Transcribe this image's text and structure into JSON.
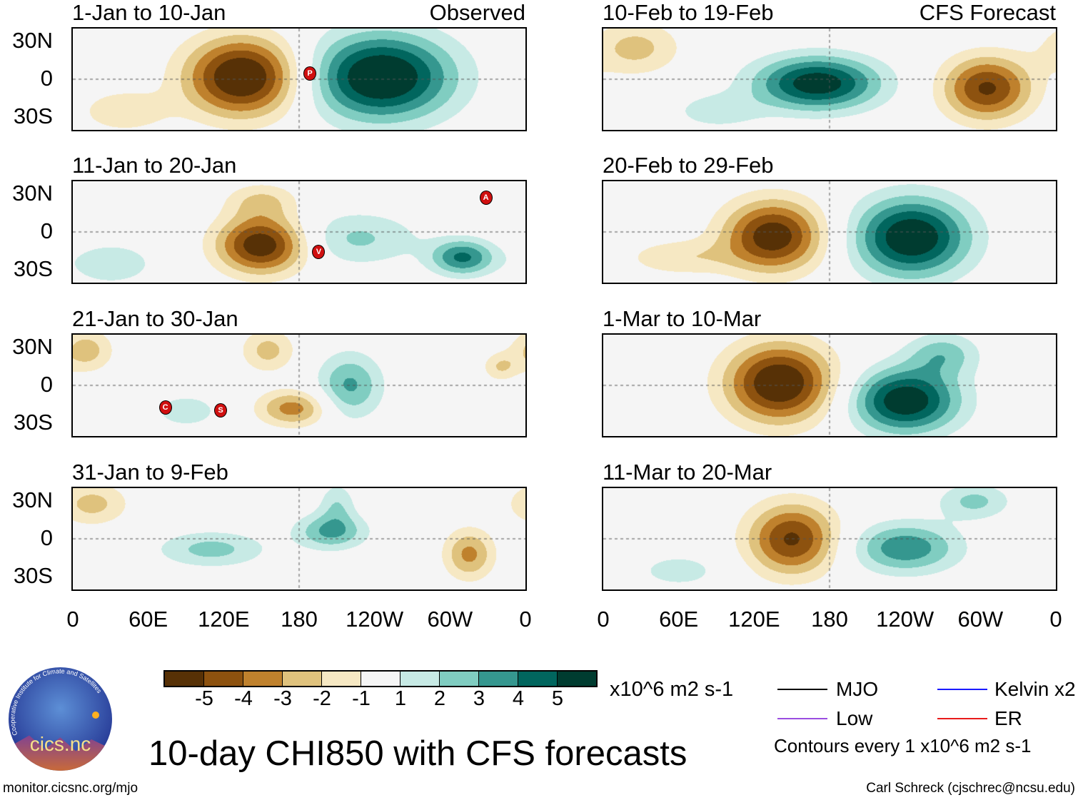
{
  "panels": [
    {
      "title": "1-Jan to 10-Jan",
      "tag": "Observed",
      "markers": [
        {
          "letter": "P",
          "lon": 188,
          "lat": 5
        }
      ],
      "blobs": [
        {
          "lon": 135,
          "lat": 2,
          "amp": -6.5,
          "slon": 32,
          "slat": 22
        },
        {
          "lon": 245,
          "lat": 2,
          "amp": 6.5,
          "slon": 40,
          "slat": 24
        },
        {
          "lon": 40,
          "lat": -25,
          "amp": -1.8,
          "slon": 25,
          "slat": 12
        }
      ]
    },
    {
      "title": "11-Jan to 20-Jan",
      "tag": "",
      "markers": [
        {
          "letter": "V",
          "lon": 195,
          "lat": -15
        },
        {
          "letter": "A",
          "lon": 328,
          "lat": 28
        }
      ],
      "blobs": [
        {
          "lon": 150,
          "lat": -10,
          "amp": -6,
          "slon": 25,
          "slat": 16
        },
        {
          "lon": 310,
          "lat": -20,
          "amp": 4.2,
          "slon": 18,
          "slat": 10
        },
        {
          "lon": 225,
          "lat": -5,
          "amp": 2.2,
          "slon": 35,
          "slat": 15
        },
        {
          "lon": 30,
          "lat": -25,
          "amp": 1.8,
          "slon": 25,
          "slat": 12
        },
        {
          "lon": 150,
          "lat": 25,
          "amp": -2,
          "slon": 20,
          "slat": 10
        }
      ]
    },
    {
      "title": "21-Jan to 30-Jan",
      "tag": "",
      "markers": [
        {
          "letter": "C",
          "lon": 73,
          "lat": -17
        },
        {
          "letter": "S",
          "lon": 117,
          "lat": -19
        }
      ],
      "blobs": [
        {
          "lon": 175,
          "lat": -18,
          "amp": -3.5,
          "slon": 20,
          "slat": 10
        },
        {
          "lon": 220,
          "lat": 0,
          "amp": 3.2,
          "slon": 18,
          "slat": 18
        },
        {
          "lon": 10,
          "lat": 28,
          "amp": -2.6,
          "slon": 15,
          "slat": 12
        },
        {
          "lon": 155,
          "lat": 28,
          "amp": -2.4,
          "slon": 15,
          "slat": 12
        },
        {
          "lon": 90,
          "lat": -20,
          "amp": 1.6,
          "slon": 20,
          "slat": 10
        },
        {
          "lon": 340,
          "lat": 15,
          "amp": -2,
          "slon": 10,
          "slat": 8
        }
      ]
    },
    {
      "title": "31-Jan to 9-Feb",
      "tag": "",
      "markers": [],
      "blobs": [
        {
          "lon": 205,
          "lat": 6,
          "amp": 3.2,
          "slon": 20,
          "slat": 10
        },
        {
          "lon": 110,
          "lat": -8,
          "amp": 2.4,
          "slon": 30,
          "slat": 10
        },
        {
          "lon": 315,
          "lat": -12,
          "amp": -3.3,
          "slon": 14,
          "slat": 14
        },
        {
          "lon": 15,
          "lat": 28,
          "amp": -2.4,
          "slon": 20,
          "slat": 12
        },
        {
          "lon": 210,
          "lat": 28,
          "amp": 1.8,
          "slon": 10,
          "slat": 12
        }
      ]
    },
    {
      "title": "10-Feb to 19-Feb",
      "tag": "CFS Forecast",
      "markers": [],
      "blobs": [
        {
          "lon": 170,
          "lat": -3,
          "amp": 5.8,
          "slon": 35,
          "slat": 15
        },
        {
          "lon": 305,
          "lat": -7,
          "amp": -5.2,
          "slon": 25,
          "slat": 18
        },
        {
          "lon": 25,
          "lat": 25,
          "amp": -2.4,
          "slon": 25,
          "slat": 15
        },
        {
          "lon": 90,
          "lat": -25,
          "amp": 1.6,
          "slon": 25,
          "slat": 10
        }
      ]
    },
    {
      "title": "20-Feb to 29-Feb",
      "tag": "",
      "markers": [],
      "blobs": [
        {
          "lon": 135,
          "lat": -3,
          "amp": -5.8,
          "slon": 28,
          "slat": 20
        },
        {
          "lon": 245,
          "lat": -4,
          "amp": 6.2,
          "slon": 32,
          "slat": 22
        },
        {
          "lon": 60,
          "lat": -20,
          "amp": -1.8,
          "slon": 30,
          "slat": 10
        }
      ]
    },
    {
      "title": "1-Mar to 10-Mar",
      "tag": "",
      "markers": [],
      "blobs": [
        {
          "lon": 140,
          "lat": 2,
          "amp": -6.3,
          "slon": 30,
          "slat": 22
        },
        {
          "lon": 240,
          "lat": -12,
          "amp": 6,
          "slon": 30,
          "slat": 18
        },
        {
          "lon": 270,
          "lat": 25,
          "amp": 2.5,
          "slon": 20,
          "slat": 12
        }
      ]
    },
    {
      "title": "11-Mar to 20-Mar",
      "tag": "",
      "markers": [],
      "blobs": [
        {
          "lon": 150,
          "lat": 0,
          "amp": -5.2,
          "slon": 25,
          "slat": 20
        },
        {
          "lon": 240,
          "lat": -7,
          "amp": 3.8,
          "slon": 30,
          "slat": 14
        },
        {
          "lon": 295,
          "lat": 30,
          "amp": 2.3,
          "slon": 20,
          "slat": 10
        },
        {
          "lon": 60,
          "lat": -25,
          "amp": 1.5,
          "slon": 25,
          "slat": 10
        }
      ]
    }
  ],
  "y_ticks": [
    "30N",
    "0",
    "30S"
  ],
  "x_ticks": [
    "0",
    "60E",
    "120E",
    "180",
    "120W",
    "60W",
    "0"
  ],
  "colorbar": {
    "colors": [
      "#573106",
      "#8d520f",
      "#bf812d",
      "#dfc27d",
      "#f6e8c3",
      "#f5f5f5",
      "#c7eae5",
      "#80cdc1",
      "#35978f",
      "#01665e",
      "#003c30"
    ],
    "labels": [
      "-5",
      "-4",
      "-3",
      "-2",
      "-1",
      "1",
      "2",
      "3",
      "4",
      "5"
    ],
    "units": "x10^6 m2 s-1"
  },
  "legend": {
    "items": [
      {
        "label": "MJO",
        "color": "#000000"
      },
      {
        "label": "Kelvin x2",
        "color": "#1a1aff"
      },
      {
        "label": "Low",
        "color": "#9b4de0"
      },
      {
        "label": "ER",
        "color": "#e81a1a"
      }
    ],
    "note": "Contours every 1 x10^6 m2 s-1"
  },
  "main_title": "10-day CHI850 with CFS forecasts",
  "logo_text": "cics.nc",
  "logo_ring_text": "Cooperative Institute for Climate and Satellites",
  "url": "monitor.cicsnc.org/mjo",
  "credit": "Carl Schreck (cjschrec@ncsu.edu)"
}
